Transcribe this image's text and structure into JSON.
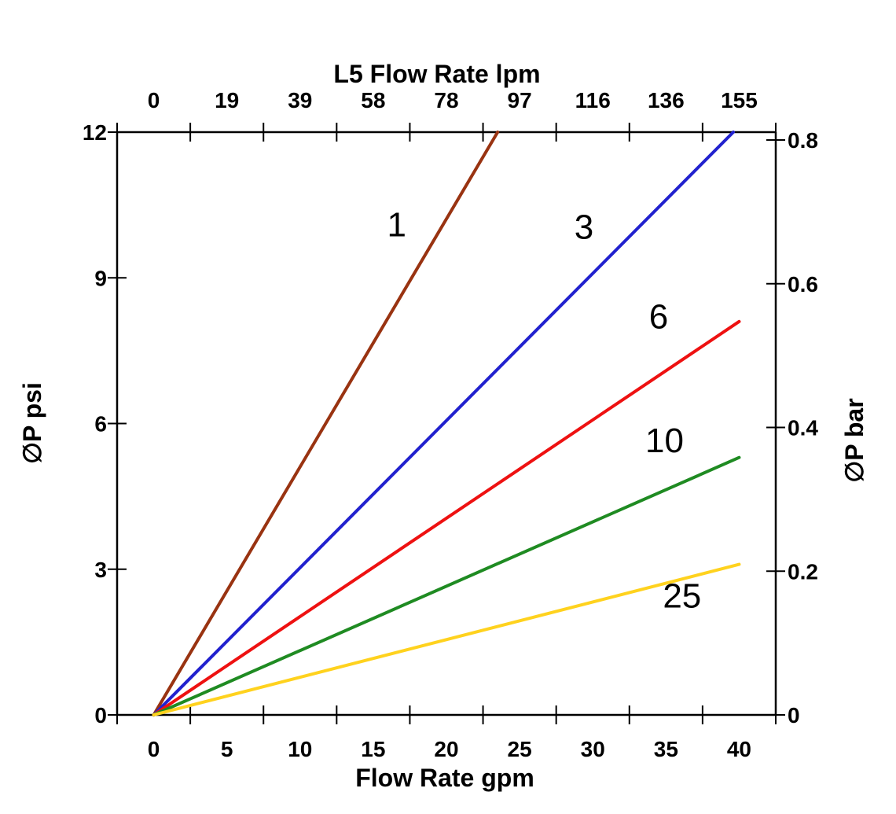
{
  "chart_data": {
    "type": "line",
    "title": "L5 Flow Rate lpm",
    "xlabel": "Flow Rate gpm",
    "ylabel_left": "∅P psi",
    "ylabel_right": "∅P bar",
    "grid": false,
    "legend": "none (inline numeric labels on lines)",
    "x_axis_bottom": {
      "unit": "gpm",
      "tick_labels": [
        "0",
        "5",
        "10",
        "15",
        "20",
        "25",
        "30",
        "35",
        "40"
      ],
      "tick_values": [
        0,
        5,
        10,
        15,
        20,
        25,
        30,
        35,
        40
      ],
      "range": [
        0,
        40
      ]
    },
    "x_axis_top": {
      "unit": "lpm",
      "tick_labels": [
        "0",
        "19",
        "39",
        "58",
        "78",
        "97",
        "116",
        "136",
        "155"
      ],
      "tick_values": [
        0,
        19,
        39,
        58,
        78,
        97,
        116,
        136,
        155
      ],
      "range": [
        0,
        155
      ]
    },
    "y_axis_left": {
      "unit": "psi",
      "tick_labels": [
        "0",
        "3",
        "6",
        "9",
        "12"
      ],
      "tick_values": [
        0,
        3,
        6,
        9,
        12
      ],
      "range": [
        0,
        12
      ]
    },
    "y_axis_right": {
      "unit": "bar",
      "tick_labels": [
        "0",
        "0.2",
        "0.4",
        "0.6",
        "0.8"
      ],
      "tick_values": [
        0,
        0.2,
        0.4,
        0.6,
        0.8
      ],
      "range": [
        0,
        0.811
      ]
    },
    "series": [
      {
        "name": "1",
        "color": "#993311",
        "points_gpm_psi": [
          [
            0,
            0
          ],
          [
            23.5,
            12
          ]
        ]
      },
      {
        "name": "3",
        "color": "#2121CE",
        "points_gpm_psi": [
          [
            0,
            0
          ],
          [
            39.6,
            12
          ]
        ]
      },
      {
        "name": "6",
        "color": "#EE1111",
        "points_gpm_psi": [
          [
            0,
            0
          ],
          [
            40,
            8.1
          ]
        ]
      },
      {
        "name": "10",
        "color": "#1F8B22",
        "points_gpm_psi": [
          [
            0,
            0
          ],
          [
            40,
            5.3
          ]
        ]
      },
      {
        "name": "25",
        "color": "#FFD21E",
        "points_gpm_psi": [
          [
            0,
            0
          ],
          [
            40,
            3.1
          ]
        ]
      }
    ],
    "annotations": [
      {
        "label": "1",
        "x_gpm": 16.6,
        "y_psi": 10.1
      },
      {
        "label": "3",
        "x_gpm": 29.4,
        "y_psi": 10.05
      },
      {
        "label": "6",
        "x_gpm": 34.5,
        "y_psi": 8.2
      },
      {
        "label": "10",
        "x_gpm": 34.9,
        "y_psi": 5.65
      },
      {
        "label": "25",
        "x_gpm": 36.1,
        "y_psi": 2.45
      }
    ],
    "colors": {
      "axis": "#000000",
      "background": "#ffffff",
      "text": "#000000"
    }
  }
}
